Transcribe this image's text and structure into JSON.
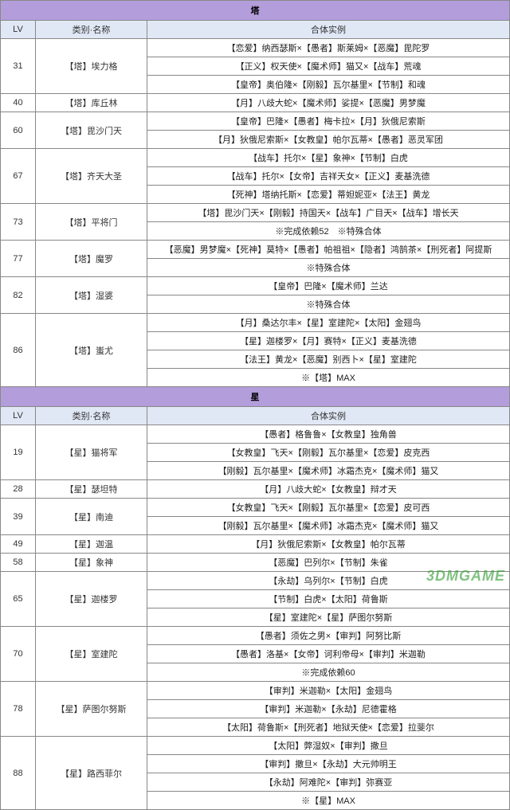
{
  "watermark": "3DMGAME",
  "colors": {
    "sectionHeaderBg": "#b39ddb",
    "colHeaderBg": "#e1e8f5",
    "border": "#888888",
    "cellBg": "#ffffff",
    "redText": "#e03020",
    "text": "#222222",
    "watermark": "rgba(60,160,60,0.65)"
  },
  "layout": {
    "widthPx": 640,
    "heightPx": 740,
    "lvColWidth": 44,
    "nameColWidth": 140,
    "exColWidth": 456,
    "fontSize": 11,
    "rowPaddingPx": 3
  },
  "headers": {
    "lv": "LV",
    "name": "类别·名称",
    "example": "合体实例"
  },
  "sections": [
    {
      "title": "塔",
      "groups": [
        {
          "lv": "31",
          "name": "【塔】埃力格",
          "rows": [
            {
              "text": "【恋爱】纳西瑟斯×【愚者】斯莱姆×【恶魔】毘陀罗"
            },
            {
              "text": "【正义】权天使×【魔术师】猫又×【战车】荒魂"
            },
            {
              "text": "【皇帝】奥伯隆×【刚毅】瓦尔基里×【节制】和魂"
            }
          ]
        },
        {
          "lv": "40",
          "name": "【塔】库丘林",
          "rows": [
            {
              "text": "【月】八歧大蛇×【魔术师】娑提×【恶魔】男梦魔"
            }
          ]
        },
        {
          "lv": "60",
          "name": "【塔】毘沙门天",
          "rows": [
            {
              "text": "【皇帝】巴隆×【愚者】梅卡拉×【月】狄俄尼索斯"
            },
            {
              "text": "【月】狄俄尼索斯×【女教皇】帕尔瓦蒂×【愚者】恶灵军团"
            }
          ]
        },
        {
          "lv": "67",
          "name": "【塔】齐天大圣",
          "rows": [
            {
              "text": "【战车】托尔×【星】象神×【节制】白虎"
            },
            {
              "text": "【战车】托尔×【女帝】吉祥天女×【正义】麦基洗德"
            },
            {
              "text": "【死神】塔纳托斯×【恋爱】蒂妲妮亚×【法王】黄龙"
            }
          ]
        },
        {
          "lv": "73",
          "name": "【塔】平将门",
          "rows": [
            {
              "text": "【塔】毘沙门天×【刚毅】持国天×【战车】广目天×【战车】增长天"
            },
            {
              "text": "※完成依赖52　※特殊合体",
              "red": true
            }
          ]
        },
        {
          "lv": "77",
          "name": "【塔】魔罗",
          "rows": [
            {
              "text": "【恶魔】男梦魔×【死神】莫特×【愚者】帕祖祖×【隐者】鸿鹄茶×【刑死者】阿提斯"
            },
            {
              "text": "※特殊合体",
              "red": true
            }
          ]
        },
        {
          "lv": "82",
          "name": "【塔】湿婆",
          "rows": [
            {
              "text": "【皇帝】巴隆×【魔术师】兰达"
            },
            {
              "text": "※特殊合体",
              "red": true
            }
          ]
        },
        {
          "lv": "86",
          "name": "【塔】蚩尤",
          "rows": [
            {
              "text": "【月】桑达尔丰×【星】室建陀×【太阳】金翅鸟"
            },
            {
              "text": "【星】迦楼罗×【月】赛特×【正义】麦基洗德"
            },
            {
              "text": "【法王】黄龙×【恶魔】别西卜×【星】室建陀"
            },
            {
              "text": "※【塔】MAX",
              "red": true
            }
          ]
        }
      ]
    },
    {
      "title": "星",
      "groups": [
        {
          "lv": "19",
          "name": "【星】猫将军",
          "rows": [
            {
              "text": "【愚者】格鲁鲁×【女教皇】独角兽"
            },
            {
              "text": "【女教皇】飞天×【刚毅】瓦尔基里×【恋爱】皮克西"
            },
            {
              "text": "【刚毅】瓦尔基里×【魔术师】冰霜杰克×【魔术师】猫又"
            }
          ]
        },
        {
          "lv": "28",
          "name": "【星】瑟坦特",
          "rows": [
            {
              "text": "【月】八歧大蛇×【女教皇】辩才天"
            }
          ]
        },
        {
          "lv": "39",
          "name": "【星】南迪",
          "rows": [
            {
              "text": "【女教皇】飞天×【刚毅】瓦尔基里×【恋爱】皮可西"
            },
            {
              "text": "【刚毅】瓦尔基里×【魔术师】冰霜杰克×【魔术师】猫又"
            }
          ]
        },
        {
          "lv": "49",
          "name": "【星】迦温",
          "rows": [
            {
              "text": "【月】狄俄尼索斯×【女教皇】帕尔瓦蒂"
            }
          ]
        },
        {
          "lv": "58",
          "name": "【星】象神",
          "rows": [
            {
              "text": "【恶魔】巴列尔×【节制】朱雀"
            }
          ]
        },
        {
          "lv": "65",
          "name": "【星】迦楼罗",
          "rows": [
            {
              "text": "【永劫】乌列尔×【节制】白虎"
            },
            {
              "text": "【节制】白虎×【太阳】荷鲁斯"
            },
            {
              "text": "【星】室建陀×【星】萨图尔努斯"
            }
          ]
        },
        {
          "lv": "70",
          "name": "【星】室建陀",
          "rows": [
            {
              "text": "【愚者】须佐之男×【审判】阿努比斯"
            },
            {
              "text": "【愚者】洛基×【女帝】诃利帝母×【审判】米迦勒"
            },
            {
              "text": "※完成依赖60",
              "red": true
            }
          ]
        },
        {
          "lv": "78",
          "name": "【星】萨图尔努斯",
          "rows": [
            {
              "text": "【审判】米迦勒×【太阳】金翅鸟"
            },
            {
              "text": "【审判】米迦勒×【永劫】尼德霍格"
            },
            {
              "text": "【太阳】荷鲁斯×【刑死者】地狱天使×【恋爱】拉斐尔"
            }
          ]
        },
        {
          "lv": "88",
          "name": "【星】路西菲尔",
          "rows": [
            {
              "text": "【太阳】弊湿奴×【审判】撒旦"
            },
            {
              "text": "【审判】撒旦×【永劫】大元帅明王"
            },
            {
              "text": "【永劫】阿难陀×【审判】弥赛亚"
            },
            {
              "text": "※【星】MAX",
              "red": true
            }
          ]
        }
      ]
    }
  ]
}
